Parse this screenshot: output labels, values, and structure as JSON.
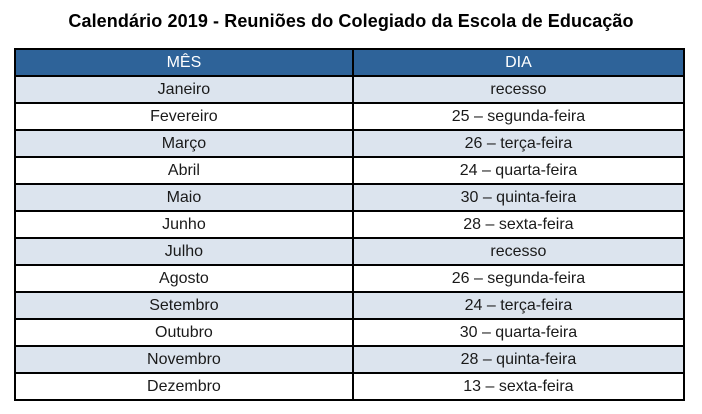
{
  "title": "Calendário 2019 - Reuniões do Colegiado da Escola de Educação",
  "colors": {
    "header_bg": "#2E6399",
    "header_text": "#FFFFFF",
    "band_bg": "#DCE4EE",
    "border": "#000000",
    "body_text": "#1A1A1A"
  },
  "table": {
    "columns": [
      "MÊS",
      "DIA"
    ],
    "rows": [
      {
        "month": "Janeiro",
        "day": "recesso"
      },
      {
        "month": "Fevereiro",
        "day": "25 – segunda-feira"
      },
      {
        "month": "Março",
        "day": "26 – terça-feira"
      },
      {
        "month": "Abril",
        "day": "24 – quarta-feira"
      },
      {
        "month": "Maio",
        "day": "30 – quinta-feira"
      },
      {
        "month": "Junho",
        "day": "28 – sexta-feira"
      },
      {
        "month": "Julho",
        "day": "recesso"
      },
      {
        "month": "Agosto",
        "day": "26 – segunda-feira"
      },
      {
        "month": "Setembro",
        "day": "24 – terça-feira"
      },
      {
        "month": "Outubro",
        "day": "30 – quarta-feira"
      },
      {
        "month": "Novembro",
        "day": "28 – quinta-feira"
      },
      {
        "month": "Dezembro",
        "day": "13 – sexta-feira"
      }
    ]
  }
}
